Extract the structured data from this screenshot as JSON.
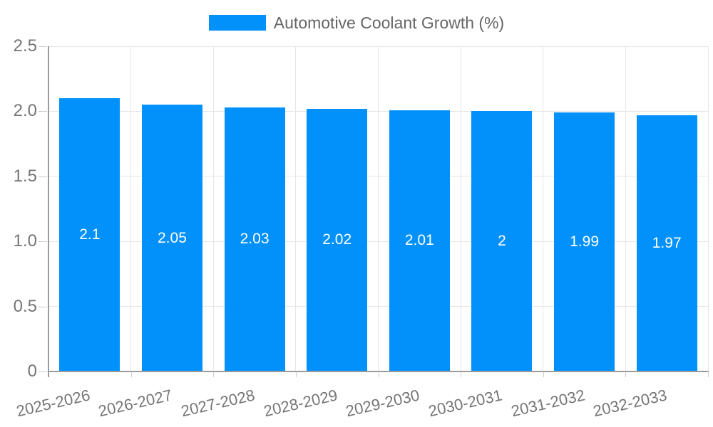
{
  "legend": {
    "label": "Automotive Coolant Growth (%)",
    "swatch_color": "#0291fa",
    "position": "top"
  },
  "chart_data": {
    "type": "bar",
    "title": "Automotive Coolant Growth (%)",
    "categories": [
      "2025-2026",
      "2026-2027",
      "2027-2028",
      "2028-2029",
      "2029-2030",
      "2030-2031",
      "2031-2032",
      "2032-2033"
    ],
    "values": [
      2.1,
      2.05,
      2.03,
      2.02,
      2.01,
      2,
      1.99,
      1.97
    ],
    "bar_labels": [
      "2.1",
      "2.05",
      "2.03",
      "2.02",
      "2.01",
      "2",
      "1.99",
      "1.97"
    ],
    "xlabel": "",
    "ylabel": "",
    "ylim": [
      0,
      2.5
    ],
    "yticks": [
      0,
      0.5,
      1.0,
      1.5,
      2.0,
      2.5
    ],
    "ytick_labels": [
      "0",
      "0.5",
      "1.0",
      "1.5",
      "2.0",
      "2.5"
    ],
    "grid": true,
    "legend_position": "top",
    "colors": {
      "bar": "#0291fa",
      "bar_value_text": "#ffffff",
      "gridline": "#e6e6e6",
      "axis_line": "#9b9b9b",
      "tick_mark": "#cccccc",
      "tick_text": "#757575",
      "legend_text": "#666666",
      "background": "#ffffff"
    }
  }
}
